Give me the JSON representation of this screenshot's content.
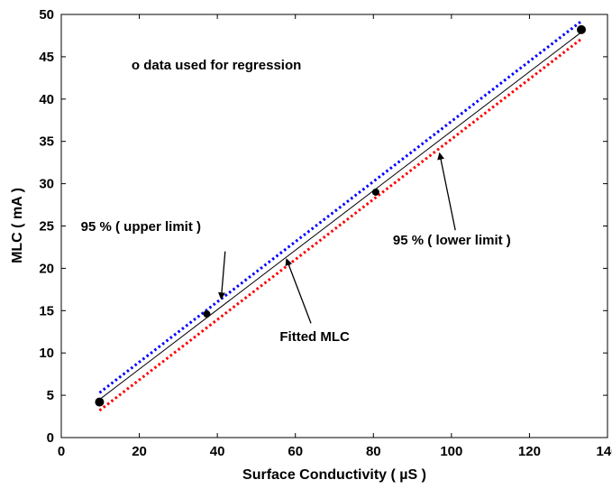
{
  "chart_data": {
    "type": "line",
    "title": "",
    "xlabel": "Surface Conductivity ( µS )",
    "ylabel": "MLC ( mA )",
    "xlim": [
      0,
      140
    ],
    "ylim": [
      0,
      50
    ],
    "xticks": [
      0,
      20,
      40,
      60,
      80,
      100,
      120,
      140
    ],
    "yticks": [
      0,
      5,
      10,
      15,
      20,
      25,
      30,
      35,
      40,
      45,
      50
    ],
    "grid": false,
    "series": [
      {
        "kind": "line",
        "style": "solid",
        "color": "#000000",
        "x": [
          9.8,
          133.3
        ],
        "y": [
          4.5,
          47.9
        ]
      },
      {
        "kind": "line",
        "style": "dotted",
        "color": "#0000ff",
        "x": [
          9.8,
          133.3
        ],
        "y": [
          5.3,
          49.2
        ]
      },
      {
        "kind": "line",
        "style": "dotted",
        "color": "#ff0000",
        "x": [
          9.8,
          133.3
        ],
        "y": [
          3.2,
          47.1
        ]
      },
      {
        "kind": "scatter",
        "color": "#000000",
        "x": [
          9.8,
          37.3,
          80.6,
          133.3
        ],
        "y": [
          4.2,
          14.6,
          29.0,
          48.2
        ]
      }
    ],
    "annotations": [
      {
        "text": "o data used for regression",
        "at": [
          18,
          43.5
        ]
      },
      {
        "text": "95 % ( upper limit )",
        "at": [
          5,
          24.4
        ],
        "arrow_to": [
          41.0,
          16.5
        ],
        "arrow_from": [
          42.0,
          22.0
        ]
      },
      {
        "text": "Fitted MLC",
        "at": [
          56,
          11.4
        ],
        "arrow_to": [
          57.8,
          21.0
        ],
        "arrow_from": [
          64.0,
          13.5
        ]
      },
      {
        "text": "95 % ( lower limit )",
        "at": [
          85,
          22.8
        ],
        "arrow_to": [
          97.0,
          33.5
        ],
        "arrow_from": [
          101.0,
          24.5
        ]
      }
    ]
  }
}
